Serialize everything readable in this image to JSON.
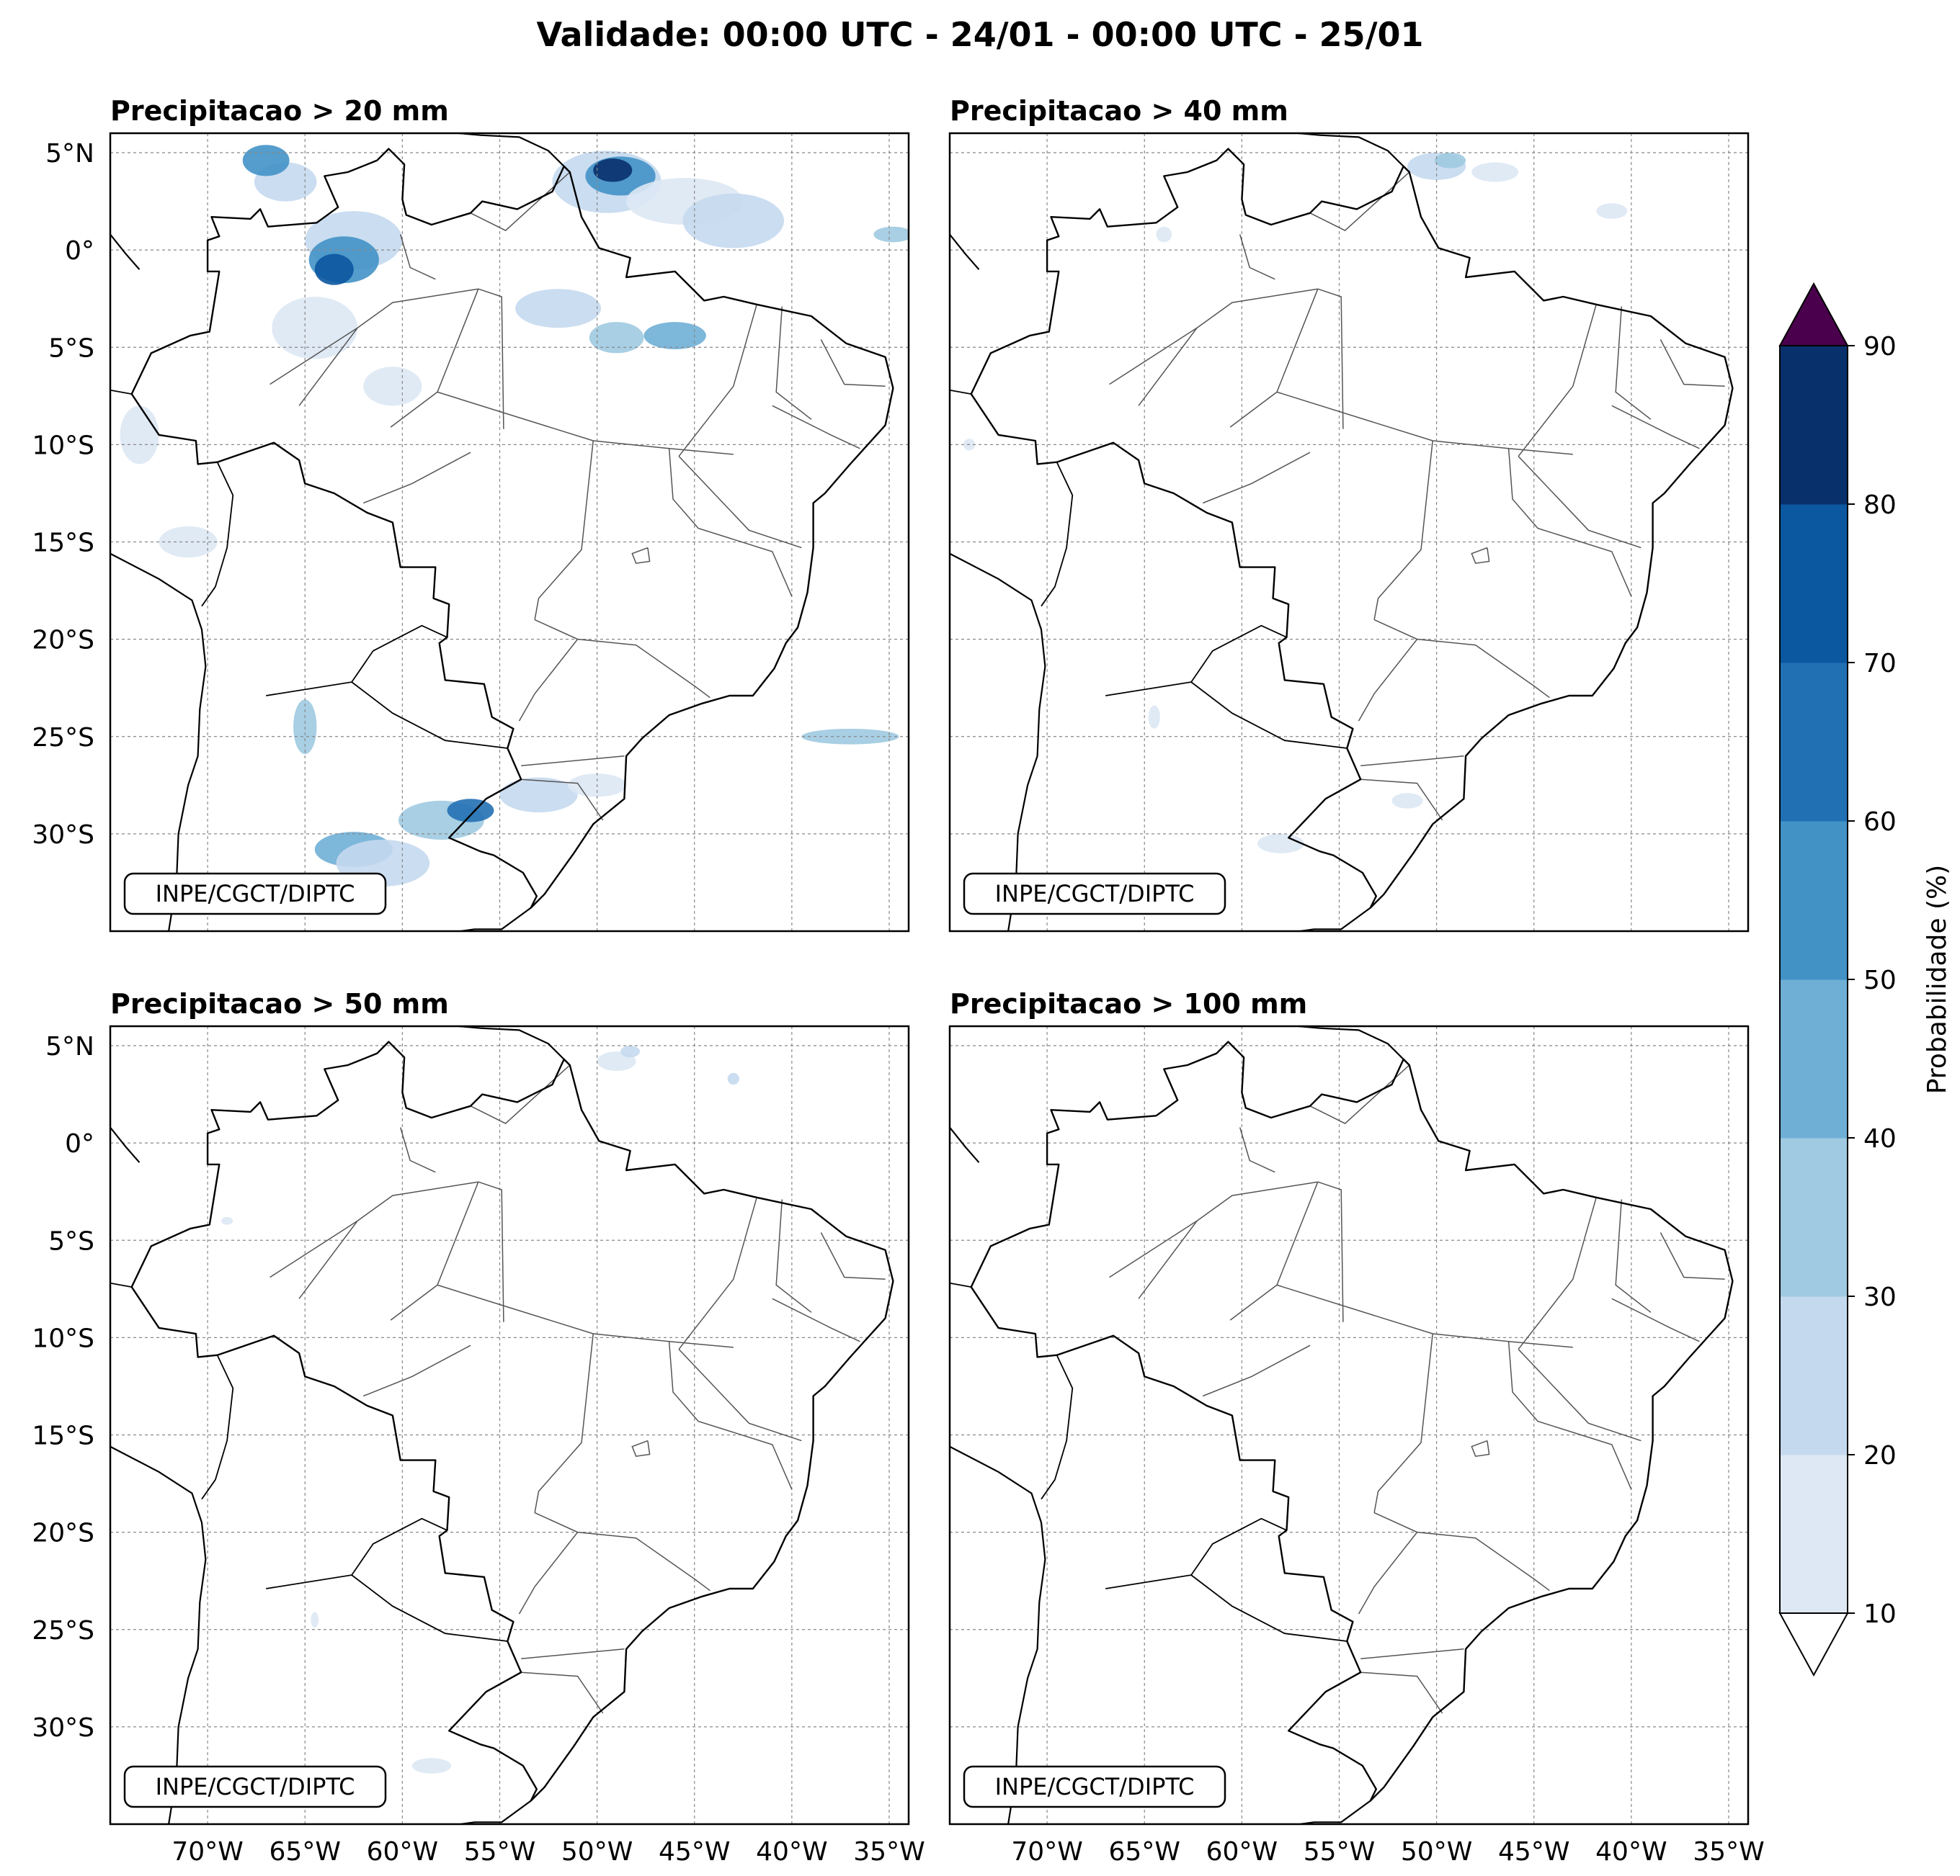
{
  "figure": {
    "title": "Validade: 00:00 UTC - 24/01 - 00:00 UTC - 25/01"
  },
  "panels": [
    {
      "title": "Precipitacao > 20 mm",
      "credit": "INPE/CGCT/DIPTC"
    },
    {
      "title": "Precipitacao > 40 mm",
      "credit": "INPE/CGCT/DIPTC"
    },
    {
      "title": "Precipitacao > 50 mm",
      "credit": "INPE/CGCT/DIPTC"
    },
    {
      "title": "Precipitacao > 100 mm",
      "credit": "INPE/CGCT/DIPTC"
    }
  ],
  "axes": {
    "lon_range": [
      -75,
      -34
    ],
    "lat_range": [
      -35,
      6
    ],
    "lon_ticks": [
      -70,
      -65,
      -60,
      -55,
      -50,
      -45,
      -40,
      -35
    ],
    "lon_tick_labels": [
      "70°W",
      "65°W",
      "60°W",
      "55°W",
      "50°W",
      "45°W",
      "40°W",
      "35°W"
    ],
    "lat_ticks": [
      5,
      0,
      -5,
      -10,
      -15,
      -20,
      -25,
      -30
    ],
    "lat_tick_labels": [
      "5°N",
      "0°",
      "5°S",
      "10°S",
      "15°S",
      "20°S",
      "25°S",
      "30°S"
    ],
    "grid": true
  },
  "colorbar": {
    "label": "Probabilidade (%)",
    "levels": [
      10,
      20,
      30,
      40,
      50,
      60,
      70,
      80,
      90
    ],
    "level_labels": [
      "10",
      "20",
      "30",
      "40",
      "50",
      "60",
      "70",
      "80",
      "90"
    ],
    "colors": [
      "#dde8f4",
      "#c5d9ee",
      "#9fcae1",
      "#6fafd6",
      "#4292c6",
      "#2270b4",
      "#0b57a0",
      "#08306b"
    ],
    "over_color": "#4a004d",
    "under_color": "#ffffff"
  },
  "colors": {
    "coast": "#000000",
    "borders": "#555555",
    "grid": "#888888"
  }
}
